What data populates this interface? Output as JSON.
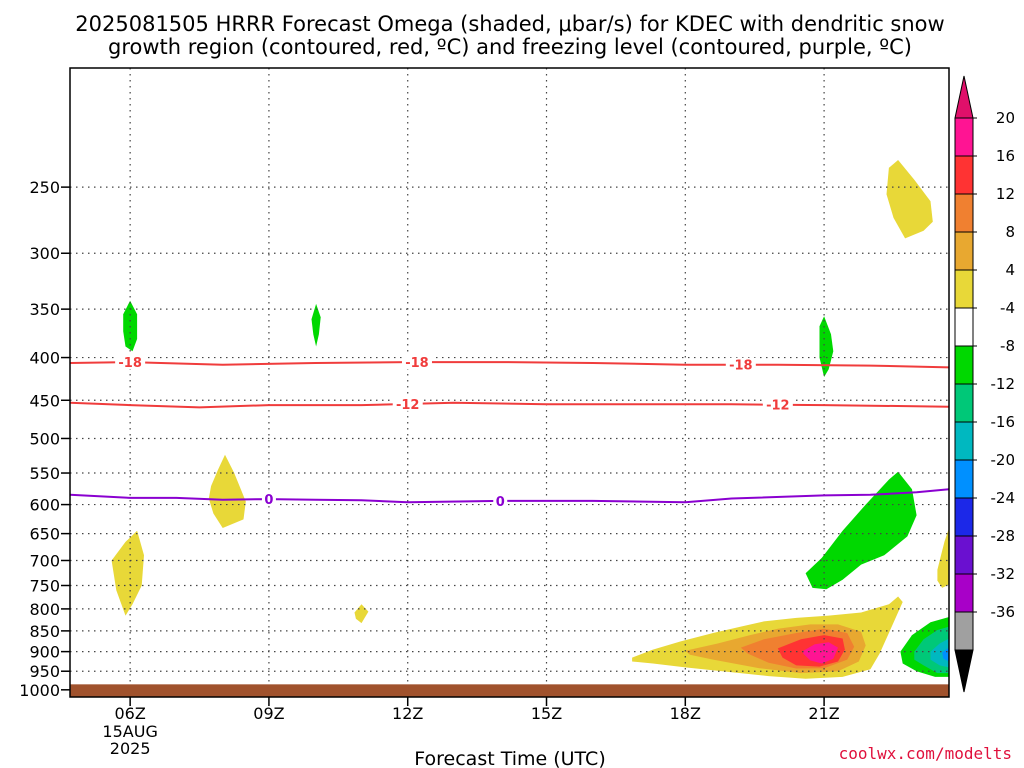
{
  "chart_data": {
    "type": "heatmap",
    "title_lines": [
      "2025081505 HRRR Forecast Omega (shaded, μbar/s) for KDEC with dendritic snow",
      "growth region (contoured, red, ºC) and freezing level (contoured, purple, ºC)"
    ],
    "xlabel": "Forecast Time (UTC)",
    "x_range_hours": [
      4.7,
      23.7
    ],
    "x_ticks": [
      {
        "hour": 6,
        "label": "06Z",
        "sublabels": [
          "15AUG",
          "2025"
        ]
      },
      {
        "hour": 9,
        "label": "09Z"
      },
      {
        "hour": 12,
        "label": "12Z"
      },
      {
        "hour": 15,
        "label": "15Z"
      },
      {
        "hour": 18,
        "label": "18Z"
      },
      {
        "hour": 21,
        "label": "21Z"
      }
    ],
    "y_range_mb": [
      180,
      1020
    ],
    "y_ticks": [
      250,
      300,
      350,
      400,
      450,
      500,
      550,
      600,
      650,
      700,
      750,
      800,
      850,
      900,
      950,
      1000
    ],
    "grid": true,
    "ground_level_mb": 985,
    "ground_color": "#a0522d",
    "colorbar": {
      "labels": [
        "20",
        "16",
        "12",
        "8",
        "4",
        "-4",
        "-8",
        "-12",
        "-16",
        "-20",
        "-24",
        "-28",
        "-32",
        "-36"
      ],
      "colors": [
        "#ff1493",
        "#ff3333",
        "#f08030",
        "#e8a830",
        "#e8d838",
        "#ffffff",
        "#00d800",
        "#00c878",
        "#00b8c0",
        "#0090ff",
        "#1c28e8",
        "#6a10d0",
        "#a800c8",
        "#a0a0a0"
      ],
      "top_arrow_color": "#e0106a",
      "bottom_arrow_color": "#000000"
    },
    "contours": [
      {
        "name": "-18",
        "color": "#f03c3c",
        "label": "-18",
        "label_hours": [
          6,
          12.2,
          19.2
        ],
        "points": [
          [
            4.7,
            406
          ],
          [
            6,
            405
          ],
          [
            8,
            408
          ],
          [
            10,
            406
          ],
          [
            12,
            405
          ],
          [
            14,
            405
          ],
          [
            16,
            406
          ],
          [
            18,
            408
          ],
          [
            20,
            408
          ],
          [
            22,
            409
          ],
          [
            23.7,
            411
          ]
        ]
      },
      {
        "name": "-12",
        "color": "#f03c3c",
        "label": "-12",
        "label_hours": [
          12,
          20
        ],
        "points": [
          [
            4.7,
            453
          ],
          [
            6,
            456
          ],
          [
            7.5,
            459
          ],
          [
            9,
            456
          ],
          [
            11,
            456
          ],
          [
            13,
            453
          ],
          [
            15,
            455
          ],
          [
            17,
            455
          ],
          [
            19,
            455
          ],
          [
            21,
            456
          ],
          [
            23.7,
            458
          ]
        ]
      },
      {
        "name": "0",
        "color": "#8a00d0",
        "label": "0",
        "label_hours": [
          9,
          14
        ],
        "points": [
          [
            4.7,
            584
          ],
          [
            6,
            589
          ],
          [
            7,
            589
          ],
          [
            8,
            592
          ],
          [
            9,
            591
          ],
          [
            10,
            592
          ],
          [
            11,
            593
          ],
          [
            12,
            596
          ],
          [
            14,
            594
          ],
          [
            16,
            594
          ],
          [
            18,
            596
          ],
          [
            19,
            590
          ],
          [
            21,
            585
          ],
          [
            22,
            584
          ],
          [
            23,
            580
          ],
          [
            23.7,
            575
          ]
        ]
      }
    ],
    "regions": [
      {
        "color": "#e8d838",
        "points": [
          [
            5.6,
            700
          ],
          [
            5.9,
            665
          ],
          [
            6.15,
            645
          ],
          [
            6.3,
            690
          ],
          [
            6.25,
            750
          ],
          [
            6.05,
            790
          ],
          [
            5.9,
            815
          ],
          [
            5.7,
            760
          ]
        ]
      },
      {
        "color": "#00d800",
        "points": [
          [
            5.85,
            355
          ],
          [
            6,
            342
          ],
          [
            6.15,
            355
          ],
          [
            6.15,
            380
          ],
          [
            6.05,
            393
          ],
          [
            5.9,
            388
          ],
          [
            5.85,
            372
          ]
        ]
      },
      {
        "color": "#e8d838",
        "points": [
          [
            7.75,
            570
          ],
          [
            7.9,
            545
          ],
          [
            8.05,
            523
          ],
          [
            8.25,
            550
          ],
          [
            8.5,
            595
          ],
          [
            8.45,
            625
          ],
          [
            8.0,
            640
          ],
          [
            7.8,
            615
          ],
          [
            7.7,
            590
          ]
        ]
      },
      {
        "color": "#00d800",
        "points": [
          [
            9.92,
            360
          ],
          [
            10.02,
            345
          ],
          [
            10.12,
            358
          ],
          [
            10.08,
            375
          ],
          [
            10.02,
            388
          ],
          [
            9.96,
            375
          ]
        ]
      },
      {
        "color": "#e8d838",
        "points": [
          [
            10.85,
            808
          ],
          [
            11.0,
            790
          ],
          [
            11.15,
            806
          ],
          [
            11.0,
            832
          ],
          [
            10.88,
            822
          ]
        ]
      },
      {
        "color": "#00d800",
        "points": [
          [
            20.9,
            367
          ],
          [
            21.0,
            357
          ],
          [
            21.15,
            375
          ],
          [
            21.2,
            393
          ],
          [
            21.1,
            413
          ],
          [
            21.0,
            422
          ],
          [
            20.9,
            400
          ]
        ]
      },
      {
        "color": "#e8d838",
        "points": [
          [
            22.4,
            237
          ],
          [
            22.6,
            232
          ],
          [
            22.95,
            245
          ],
          [
            23.3,
            260
          ],
          [
            23.35,
            275
          ],
          [
            23.15,
            282
          ],
          [
            22.75,
            288
          ],
          [
            22.5,
            272
          ],
          [
            22.35,
            255
          ]
        ]
      },
      {
        "color": "#00d800",
        "points": [
          [
            20.6,
            725
          ],
          [
            20.95,
            695
          ],
          [
            21.4,
            645
          ],
          [
            21.9,
            600
          ],
          [
            22.4,
            560
          ],
          [
            22.6,
            548
          ],
          [
            22.9,
            575
          ],
          [
            23.0,
            618
          ],
          [
            22.8,
            655
          ],
          [
            22.3,
            690
          ],
          [
            21.8,
            708
          ],
          [
            21.4,
            738
          ],
          [
            21.05,
            758
          ],
          [
            20.75,
            755
          ]
        ]
      },
      {
        "color": "#e8d838",
        "points": [
          [
            23.45,
            718
          ],
          [
            23.6,
            665
          ],
          [
            23.7,
            640
          ],
          [
            23.7,
            748
          ],
          [
            23.55,
            755
          ],
          [
            23.45,
            740
          ]
        ]
      },
      {
        "color": "#e8d838",
        "points": [
          [
            16.85,
            915
          ],
          [
            17.3,
            895
          ],
          [
            17.9,
            875
          ],
          [
            18.6,
            855
          ],
          [
            19.2,
            840
          ],
          [
            19.7,
            828
          ],
          [
            20.4,
            820
          ],
          [
            21.1,
            815
          ],
          [
            21.8,
            808
          ],
          [
            22.4,
            790
          ],
          [
            22.6,
            773
          ],
          [
            22.7,
            785
          ],
          [
            22.4,
            855
          ],
          [
            22.2,
            905
          ],
          [
            22.0,
            945
          ],
          [
            21.4,
            965
          ],
          [
            20.6,
            970
          ],
          [
            19.8,
            963
          ],
          [
            18.8,
            950
          ],
          [
            18.0,
            940
          ],
          [
            17.3,
            930
          ],
          [
            16.85,
            925
          ]
        ]
      },
      {
        "color": "#e8a830",
        "points": [
          [
            18.0,
            898
          ],
          [
            18.7,
            880
          ],
          [
            19.4,
            860
          ],
          [
            20.0,
            845
          ],
          [
            20.7,
            835
          ],
          [
            21.3,
            835
          ],
          [
            21.8,
            852
          ],
          [
            21.9,
            885
          ],
          [
            21.75,
            925
          ],
          [
            21.3,
            950
          ],
          [
            20.5,
            955
          ],
          [
            19.6,
            942
          ],
          [
            18.6,
            920
          ],
          [
            18.1,
            908
          ]
        ]
      },
      {
        "color": "#f08030",
        "points": [
          [
            19.2,
            890
          ],
          [
            19.7,
            870
          ],
          [
            20.4,
            855
          ],
          [
            21.0,
            845
          ],
          [
            21.5,
            855
          ],
          [
            21.65,
            888
          ],
          [
            21.5,
            920
          ],
          [
            21.0,
            942
          ],
          [
            20.4,
            943
          ],
          [
            19.8,
            928
          ],
          [
            19.35,
            905
          ]
        ]
      },
      {
        "color": "#ff3333",
        "points": [
          [
            20.0,
            892
          ],
          [
            20.5,
            870
          ],
          [
            21.0,
            860
          ],
          [
            21.4,
            868
          ],
          [
            21.45,
            895
          ],
          [
            21.3,
            925
          ],
          [
            20.9,
            938
          ],
          [
            20.4,
            935
          ],
          [
            20.1,
            915
          ]
        ]
      },
      {
        "color": "#ff1493",
        "points": [
          [
            20.55,
            898
          ],
          [
            20.8,
            882
          ],
          [
            21.1,
            877
          ],
          [
            21.3,
            890
          ],
          [
            21.2,
            918
          ],
          [
            20.95,
            930
          ],
          [
            20.7,
            922
          ],
          [
            20.55,
            905
          ]
        ]
      },
      {
        "color": "#00d800",
        "points": [
          [
            22.65,
            900
          ],
          [
            22.9,
            860
          ],
          [
            23.3,
            830
          ],
          [
            23.7,
            818
          ],
          [
            23.7,
            965
          ],
          [
            23.4,
            965
          ],
          [
            23.0,
            950
          ],
          [
            22.7,
            930
          ]
        ]
      },
      {
        "color": "#00c878",
        "points": [
          [
            22.95,
            900
          ],
          [
            23.15,
            870
          ],
          [
            23.45,
            848
          ],
          [
            23.7,
            840
          ],
          [
            23.7,
            955
          ],
          [
            23.45,
            955
          ],
          [
            23.15,
            935
          ],
          [
            22.95,
            920
          ]
        ]
      },
      {
        "color": "#00b8c0",
        "points": [
          [
            23.3,
            900
          ],
          [
            23.5,
            880
          ],
          [
            23.7,
            868
          ],
          [
            23.7,
            940
          ],
          [
            23.5,
            935
          ],
          [
            23.3,
            920
          ]
        ]
      },
      {
        "color": "#0090ff",
        "points": [
          [
            23.55,
            902
          ],
          [
            23.7,
            890
          ],
          [
            23.7,
            925
          ],
          [
            23.58,
            918
          ]
        ]
      }
    ]
  },
  "credit": "coolwx.com/modelts",
  "credit_color": "#e0103c"
}
